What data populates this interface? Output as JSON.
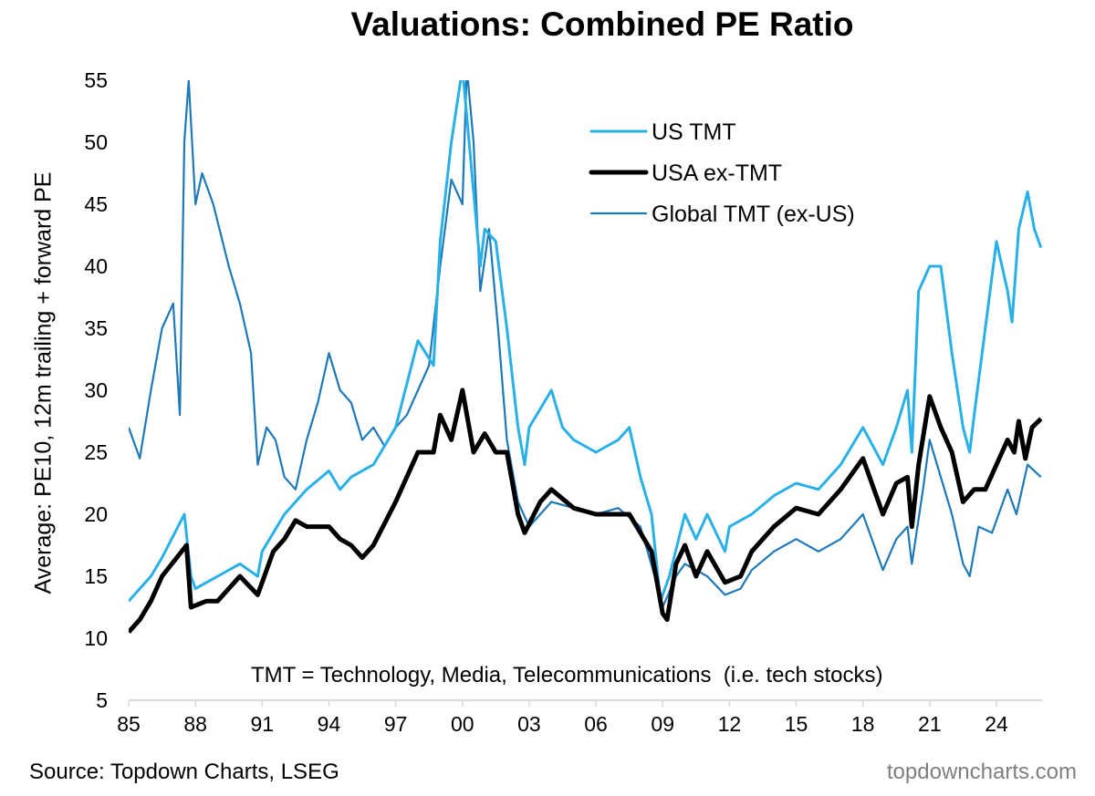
{
  "chart_data": {
    "type": "line",
    "title": "Valuations: Combined PE Ratio",
    "ylabel": "Average: PE10, 12m trailing + forward PE",
    "xlabel": "",
    "ylim": [
      5,
      55
    ],
    "yticks": [
      5,
      10,
      15,
      20,
      25,
      30,
      35,
      40,
      45,
      50,
      55
    ],
    "xlim": [
      1985,
      2026.2
    ],
    "xticks": [
      1985,
      1988,
      1991,
      1994,
      1997,
      2000,
      2003,
      2006,
      2009,
      2012,
      2015,
      2018,
      2021,
      2024
    ],
    "xtick_labels": [
      "85",
      "88",
      "91",
      "94",
      "97",
      "00",
      "03",
      "06",
      "09",
      "12",
      "15",
      "18",
      "21",
      "24"
    ],
    "grid": false,
    "legend_position": "top-right",
    "annotation": "TMT = Technology, Media, Telecommunications  (i.e. tech stocks)",
    "series": [
      {
        "name": "US TMT",
        "color": "#29b0e6",
        "points": [
          [
            1985,
            13
          ],
          [
            1986,
            15
          ],
          [
            1986.5,
            16.5
          ],
          [
            1987.5,
            20
          ],
          [
            1987.8,
            15
          ],
          [
            1988,
            14
          ],
          [
            1989,
            15
          ],
          [
            1990,
            16
          ],
          [
            1990.8,
            15
          ],
          [
            1991,
            17
          ],
          [
            1992,
            20
          ],
          [
            1993,
            22
          ],
          [
            1994,
            23.5
          ],
          [
            1994.5,
            22
          ],
          [
            1995,
            23
          ],
          [
            1996,
            24
          ],
          [
            1997,
            27
          ],
          [
            1998,
            34
          ],
          [
            1998.7,
            32
          ],
          [
            1999,
            42
          ],
          [
            1999.5,
            50
          ],
          [
            2000,
            56
          ],
          [
            2000.3,
            50
          ],
          [
            2000.8,
            40
          ],
          [
            2001,
            43
          ],
          [
            2001.5,
            42
          ],
          [
            2002,
            35
          ],
          [
            2002.5,
            27
          ],
          [
            2002.8,
            24
          ],
          [
            2003,
            27
          ],
          [
            2004,
            30
          ],
          [
            2004.5,
            27
          ],
          [
            2005,
            26
          ],
          [
            2006,
            25
          ],
          [
            2007,
            26
          ],
          [
            2007.5,
            27
          ],
          [
            2008,
            23
          ],
          [
            2008.5,
            20
          ],
          [
            2008.9,
            13
          ],
          [
            2009.3,
            15
          ],
          [
            2010,
            20
          ],
          [
            2010.5,
            18
          ],
          [
            2011,
            20
          ],
          [
            2011.8,
            17
          ],
          [
            2012,
            19
          ],
          [
            2013,
            20
          ],
          [
            2014,
            21.5
          ],
          [
            2015,
            22.5
          ],
          [
            2016,
            22
          ],
          [
            2017,
            24
          ],
          [
            2018,
            27
          ],
          [
            2018.9,
            24
          ],
          [
            2019.5,
            27
          ],
          [
            2020,
            30
          ],
          [
            2020.2,
            25
          ],
          [
            2020.5,
            38
          ],
          [
            2021,
            40
          ],
          [
            2021.5,
            40
          ],
          [
            2022,
            33
          ],
          [
            2022.5,
            27
          ],
          [
            2022.8,
            25
          ],
          [
            2023,
            28
          ],
          [
            2023.5,
            35
          ],
          [
            2024,
            42
          ],
          [
            2024.5,
            38
          ],
          [
            2024.7,
            35.5
          ],
          [
            2025,
            43
          ],
          [
            2025.4,
            46
          ],
          [
            2025.7,
            43
          ],
          [
            2026,
            41.5
          ]
        ]
      },
      {
        "name": "USA ex-TMT",
        "color": "#000000",
        "points": [
          [
            1985,
            10.5
          ],
          [
            1985.5,
            11.5
          ],
          [
            1986,
            13
          ],
          [
            1986.5,
            15
          ],
          [
            1987.6,
            17.5
          ],
          [
            1987.8,
            12.5
          ],
          [
            1988.5,
            13
          ],
          [
            1989,
            13
          ],
          [
            1990,
            15
          ],
          [
            1990.8,
            13.5
          ],
          [
            1991.5,
            17
          ],
          [
            1992,
            18
          ],
          [
            1992.5,
            19.5
          ],
          [
            1993,
            19
          ],
          [
            1994,
            19
          ],
          [
            1994.5,
            18
          ],
          [
            1995,
            17.5
          ],
          [
            1995.5,
            16.5
          ],
          [
            1996,
            17.5
          ],
          [
            1997,
            21
          ],
          [
            1998,
            25
          ],
          [
            1998.7,
            25
          ],
          [
            1999,
            28
          ],
          [
            1999.5,
            26
          ],
          [
            2000,
            30
          ],
          [
            2000.5,
            25
          ],
          [
            2001,
            26.5
          ],
          [
            2001.5,
            25
          ],
          [
            2002,
            25
          ],
          [
            2002.5,
            20
          ],
          [
            2002.8,
            18.5
          ],
          [
            2003.5,
            21
          ],
          [
            2004,
            22
          ],
          [
            2005,
            20.5
          ],
          [
            2006,
            20
          ],
          [
            2007,
            20
          ],
          [
            2007.5,
            20
          ],
          [
            2008,
            18.5
          ],
          [
            2008.5,
            17
          ],
          [
            2009,
            12
          ],
          [
            2009.2,
            11.5
          ],
          [
            2009.6,
            16
          ],
          [
            2010,
            17.5
          ],
          [
            2010.5,
            15
          ],
          [
            2011,
            17
          ],
          [
            2011.8,
            14.5
          ],
          [
            2012.5,
            15
          ],
          [
            2013,
            17
          ],
          [
            2014,
            19
          ],
          [
            2015,
            20.5
          ],
          [
            2016,
            20
          ],
          [
            2017,
            22
          ],
          [
            2018,
            24.5
          ],
          [
            2018.9,
            20
          ],
          [
            2019.5,
            22.5
          ],
          [
            2020,
            23
          ],
          [
            2020.2,
            19
          ],
          [
            2020.5,
            24
          ],
          [
            2021,
            29.5
          ],
          [
            2021.5,
            27
          ],
          [
            2022,
            25
          ],
          [
            2022.5,
            21
          ],
          [
            2023,
            22
          ],
          [
            2023.5,
            22
          ],
          [
            2024,
            24
          ],
          [
            2024.5,
            26
          ],
          [
            2024.8,
            25
          ],
          [
            2025,
            27.5
          ],
          [
            2025.3,
            24.5
          ],
          [
            2025.6,
            27
          ],
          [
            2026,
            27.7
          ]
        ]
      },
      {
        "name": "Global TMT (ex-US)",
        "color": "#1f78b8",
        "points": [
          [
            1985,
            27
          ],
          [
            1985.5,
            24.5
          ],
          [
            1986,
            30
          ],
          [
            1986.5,
            35
          ],
          [
            1987,
            37
          ],
          [
            1987.3,
            28
          ],
          [
            1987.5,
            50
          ],
          [
            1987.7,
            55
          ],
          [
            1988,
            45
          ],
          [
            1988.3,
            47.5
          ],
          [
            1988.8,
            45
          ],
          [
            1989.5,
            40
          ],
          [
            1990,
            37
          ],
          [
            1990.5,
            33
          ],
          [
            1990.8,
            24
          ],
          [
            1991.2,
            27
          ],
          [
            1991.6,
            26
          ],
          [
            1992,
            23
          ],
          [
            1992.5,
            22
          ],
          [
            1993,
            26
          ],
          [
            1993.5,
            29
          ],
          [
            1994,
            33
          ],
          [
            1994.5,
            30
          ],
          [
            1995,
            29
          ],
          [
            1995.5,
            26
          ],
          [
            1996,
            27
          ],
          [
            1996.5,
            25.5
          ],
          [
            1997,
            27
          ],
          [
            1997.5,
            28
          ],
          [
            1998,
            30
          ],
          [
            1998.5,
            32
          ],
          [
            1999,
            40
          ],
          [
            1999.5,
            47
          ],
          [
            2000,
            45
          ],
          [
            2000.2,
            56
          ],
          [
            2000.5,
            50
          ],
          [
            2000.8,
            38
          ],
          [
            2001.2,
            43
          ],
          [
            2001.6,
            35
          ],
          [
            2002,
            26
          ],
          [
            2002.5,
            21
          ],
          [
            2003,
            19
          ],
          [
            2004,
            21
          ],
          [
            2005,
            20.5
          ],
          [
            2006,
            20
          ],
          [
            2007,
            20.5
          ],
          [
            2008,
            19
          ],
          [
            2008.8,
            14
          ],
          [
            2009,
            12.5
          ],
          [
            2009.6,
            15
          ],
          [
            2010,
            16
          ],
          [
            2011,
            15
          ],
          [
            2011.8,
            13.5
          ],
          [
            2012.5,
            14
          ],
          [
            2013,
            15.5
          ],
          [
            2014,
            17
          ],
          [
            2015,
            18
          ],
          [
            2016,
            17
          ],
          [
            2017,
            18
          ],
          [
            2018,
            20
          ],
          [
            2018.9,
            15.5
          ],
          [
            2019.5,
            18
          ],
          [
            2020,
            19
          ],
          [
            2020.2,
            16
          ],
          [
            2020.7,
            22
          ],
          [
            2021,
            26
          ],
          [
            2021.5,
            23
          ],
          [
            2022,
            20
          ],
          [
            2022.5,
            16
          ],
          [
            2022.8,
            15
          ],
          [
            2023.2,
            19
          ],
          [
            2023.8,
            18.5
          ],
          [
            2024.5,
            22
          ],
          [
            2024.9,
            20
          ],
          [
            2025.4,
            24
          ],
          [
            2026,
            23
          ]
        ]
      }
    ]
  },
  "footer": {
    "source": "Source: Topdown Charts, LSEG",
    "site": "topdowncharts.com"
  }
}
